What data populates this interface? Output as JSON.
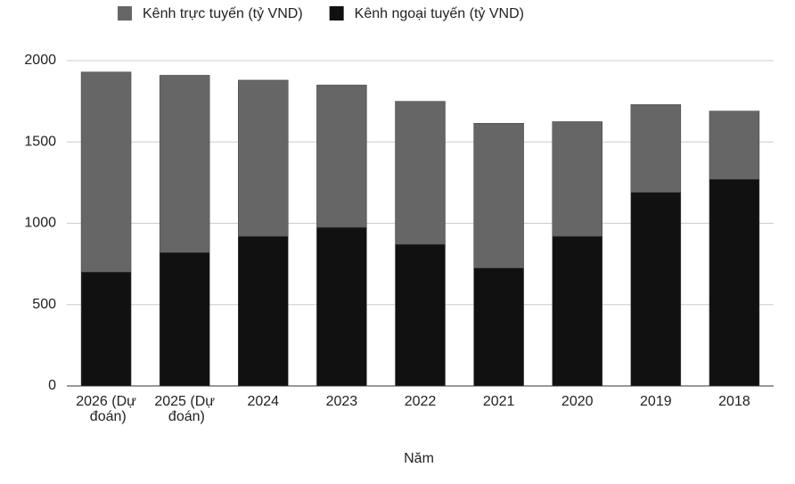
{
  "chart_data": {
    "type": "stacked-bar",
    "x_label": "Năm",
    "categories": [
      "2026 (Dự đoán)",
      "2025 (Dự đoán)",
      "2024",
      "2023",
      "2022",
      "2021",
      "2020",
      "2019",
      "2018"
    ],
    "series": [
      {
        "name": "Kênh trực tuyến (tỷ VND)",
        "color": "#666666",
        "values": [
          1230,
          1090,
          960,
          875,
          880,
          890,
          705,
          540,
          420
        ]
      },
      {
        "name": "Kênh ngoại tuyến (tỷ VND)",
        "color": "#111111",
        "values": [
          700,
          820,
          920,
          975,
          870,
          725,
          920,
          1190,
          1270
        ]
      }
    ],
    "ylim": [
      0,
      2000
    ],
    "yticks": [
      0,
      500,
      1000,
      1500,
      2000
    ],
    "grid": true,
    "legend": "top"
  }
}
